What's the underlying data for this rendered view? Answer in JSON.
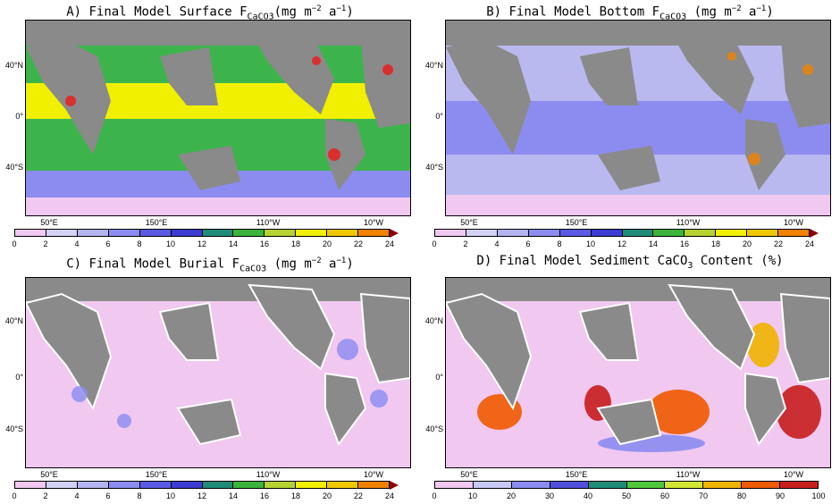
{
  "panels": [
    {
      "id": "A",
      "title_prefix": "A) Final Model Surface F",
      "title_sub": "CaCO3",
      "title_unit_pre": "(mg m",
      "title_sup1": "−2",
      "title_mid": " a",
      "title_sup2": "−1",
      "title_close": ")",
      "ocean_fill": "#3cb44b",
      "colorbar": "A"
    },
    {
      "id": "B",
      "title_prefix": "B) Final Model Bottom F",
      "title_sub": "CaCO3",
      "title_unit_pre": " (mg m",
      "title_sup1": "−2",
      "title_mid": " a",
      "title_sup2": "−1",
      "title_close": ")",
      "ocean_fill": "#b9b9f0",
      "colorbar": "A"
    },
    {
      "id": "C",
      "title_prefix": "C) Final Model Burial F",
      "title_sub": "CaCO3",
      "title_unit_pre": " (mg m",
      "title_sup1": "−2",
      "title_mid": " a",
      "title_sup2": "−1",
      "title_close": ")",
      "ocean_fill": "#f0c8f0",
      "colorbar": "A"
    },
    {
      "id": "D",
      "title_prefix": "D) Final Model Sediment CaCO",
      "title_sub": "3",
      "title_unit_pre": " Content (%)",
      "title_sup1": "",
      "title_mid": "",
      "title_sup2": "",
      "title_close": "",
      "ocean_fill": "#f0c8f0",
      "colorbar": "D"
    }
  ],
  "lat_labels": [
    "40°N",
    "0°",
    "40°S"
  ],
  "lon_labels": [
    "50°E",
    "150°E",
    "110°W",
    "10°W"
  ],
  "colorbar_A": {
    "ticks": [
      "0",
      "2",
      "4",
      "6",
      "8",
      "10",
      "12",
      "14",
      "16",
      "18",
      "20",
      "22",
      "24"
    ],
    "colors": [
      "#f0c8f0",
      "#d2d2f5",
      "#b4b4f0",
      "#8c8cf0",
      "#5a5ae6",
      "#3c3cd2",
      "#1e8c78",
      "#3cb43c",
      "#b4d232",
      "#f0f000",
      "#f0c800",
      "#f08200",
      "#e61e1e"
    ],
    "overflow_color": "#8b0000"
  },
  "colorbar_D": {
    "ticks": [
      "0",
      "10",
      "20",
      "30",
      "40",
      "50",
      "60",
      "70",
      "80",
      "90",
      "100"
    ],
    "colors": [
      "#f0c8f0",
      "#c8c8f5",
      "#8c8cf0",
      "#5050dc",
      "#1e8c78",
      "#50c83c",
      "#d2e632",
      "#f0b400",
      "#f05a00",
      "#c81e1e",
      "#780000"
    ]
  }
}
